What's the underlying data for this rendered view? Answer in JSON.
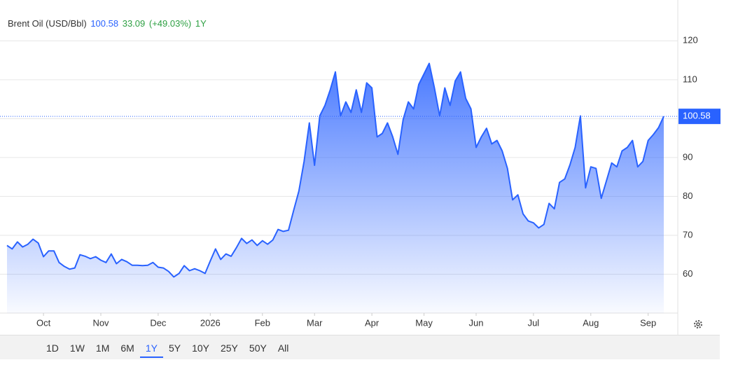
{
  "chart_data": {
    "type": "area",
    "title": "Brent Oil (USD/Bbl)",
    "change": 33.09,
    "change_percent": {
      "value": 49.03,
      "label": "(+49.03%)"
    },
    "ranges": [
      "1D",
      "1W",
      "1M",
      "6M",
      "1Y",
      "5Y",
      "10Y",
      "25Y",
      "50Y",
      "All"
    ],
    "selected_range": 4,
    "ylim": [
      50,
      128.7
    ],
    "yticks": [
      60,
      70,
      80,
      90,
      100,
      110,
      120
    ],
    "grid": true,
    "categories": [
      null,
      null,
      null,
      null,
      null,
      null,
      null,
      "Oct",
      null,
      null,
      null,
      null,
      null,
      null,
      null,
      null,
      null,
      null,
      "Nov",
      null,
      null,
      null,
      null,
      null,
      null,
      null,
      null,
      null,
      null,
      "Dec",
      null,
      null,
      null,
      null,
      null,
      null,
      null,
      null,
      null,
      "2026",
      null,
      null,
      null,
      null,
      null,
      null,
      null,
      null,
      null,
      "Feb",
      null,
      null,
      null,
      null,
      null,
      null,
      null,
      null,
      null,
      "Mar",
      null,
      null,
      null,
      null,
      null,
      null,
      null,
      null,
      null,
      null,
      "Apr",
      null,
      null,
      null,
      null,
      null,
      null,
      null,
      null,
      null,
      "May",
      null,
      null,
      null,
      null,
      null,
      null,
      null,
      null,
      null,
      "Jun",
      null,
      null,
      null,
      null,
      null,
      null,
      null,
      null,
      null,
      null,
      "Jul",
      null,
      null,
      null,
      null,
      null,
      null,
      null,
      null,
      null,
      null,
      "Aug",
      null,
      null,
      null,
      null,
      null,
      null,
      null,
      null,
      null,
      null,
      "Sep",
      null,
      null,
      null
    ],
    "series": [
      {
        "name": "Brent Oil",
        "color": "#2962ff",
        "values": [
          67.4,
          66.5,
          68.3,
          67,
          67.7,
          69,
          68,
          64.5,
          66,
          66,
          63,
          62,
          61.3,
          61.6,
          65,
          64.6,
          64,
          64.5,
          63.6,
          63,
          65.2,
          62.7,
          63.8,
          63.2,
          62.3,
          62.3,
          62.2,
          62.3,
          63,
          61.8,
          61.6,
          60.7,
          59.3,
          60.2,
          62.2,
          60.9,
          61.4,
          60.9,
          60.2,
          63.4,
          66.5,
          63.8,
          65.2,
          64.6,
          66.8,
          69.2,
          67.9,
          68.8,
          67.4,
          68.6,
          67.7,
          68.8,
          71.5,
          71,
          71.3,
          76.4,
          81.4,
          89,
          98.9,
          88,
          100.7,
          103.4,
          107.4,
          112,
          100.7,
          104.3,
          101.6,
          107.4,
          101.6,
          109.2,
          107.9,
          95.3,
          96.2,
          98.9,
          95.3,
          90.8,
          99.8,
          104.3,
          102.5,
          108.8,
          111.5,
          114.2,
          107.9,
          100.7,
          107.9,
          103.4,
          109.7,
          112,
          105.2,
          102.5,
          92.6,
          95.3,
          97.5,
          93.5,
          94.4,
          91.7,
          87.2,
          79.1,
          80.4,
          75.5,
          73.7,
          73.2,
          71.9,
          72.8,
          78.2,
          76.8,
          83.6,
          84.5,
          88.1,
          92.6,
          100.7,
          82.2,
          87.6,
          87.2,
          79.5,
          84,
          88.6,
          87.6,
          91.7,
          92.6,
          94.4,
          87.6,
          89,
          94.4,
          95.9,
          97.7,
          100.58
        ]
      }
    ]
  }
}
